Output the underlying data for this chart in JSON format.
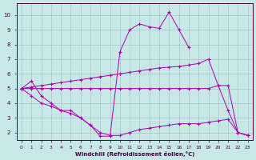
{
  "xlabel": "Windchill (Refroidissement éolien,°C)",
  "background_color": "#c8e8e8",
  "line_color": "#aa00aa",
  "grid_color": "#9fbfbf",
  "xlim": [
    -0.5,
    23.5
  ],
  "ylim": [
    1.5,
    10.8
  ],
  "xticks": [
    0,
    1,
    2,
    3,
    4,
    5,
    6,
    7,
    8,
    9,
    10,
    11,
    12,
    13,
    14,
    15,
    16,
    17,
    18,
    19,
    20,
    21,
    22,
    23
  ],
  "yticks": [
    2,
    3,
    4,
    5,
    6,
    7,
    8,
    9,
    10
  ],
  "line1_x": [
    0,
    1,
    2,
    3,
    4,
    5,
    6,
    7,
    8,
    9,
    10,
    11,
    12,
    13,
    14,
    15,
    16,
    17
  ],
  "line1_y": [
    5.0,
    5.5,
    4.5,
    4.0,
    3.5,
    3.5,
    3.0,
    2.5,
    1.75,
    1.75,
    7.5,
    9.0,
    9.4,
    9.2,
    9.1,
    10.2,
    9.0,
    7.8
  ],
  "line2_x": [
    0,
    1,
    2,
    3,
    4,
    5,
    6,
    7,
    8,
    9,
    10,
    11,
    12,
    13,
    14,
    15,
    16,
    17,
    18,
    19,
    20,
    21,
    22,
    23
  ],
  "line2_y": [
    5.0,
    5.1,
    5.2,
    5.3,
    5.4,
    5.5,
    5.6,
    5.7,
    5.8,
    5.9,
    6.0,
    6.1,
    6.2,
    6.3,
    6.4,
    6.45,
    6.5,
    6.6,
    6.7,
    7.0,
    5.2,
    3.5,
    2.0,
    1.8
  ],
  "line3_x": [
    0,
    1,
    2,
    3,
    4,
    5,
    6,
    7,
    8,
    9,
    10,
    11,
    12,
    13,
    14,
    15,
    16,
    17,
    18,
    19,
    20,
    21,
    22,
    23
  ],
  "line3_y": [
    5.0,
    5.0,
    5.0,
    5.0,
    5.0,
    5.0,
    5.0,
    5.0,
    5.0,
    5.0,
    5.0,
    5.0,
    5.0,
    5.0,
    5.0,
    5.0,
    5.0,
    5.0,
    5.0,
    5.0,
    5.2,
    5.2,
    2.0,
    1.8
  ],
  "line4_x": [
    0,
    1,
    2,
    3,
    4,
    5,
    6,
    7,
    8,
    9,
    10,
    11,
    12,
    13,
    14,
    15,
    16,
    17,
    18,
    19,
    20,
    21,
    22,
    23
  ],
  "line4_y": [
    5.0,
    4.5,
    4.0,
    3.8,
    3.5,
    3.3,
    3.0,
    2.5,
    2.0,
    1.8,
    1.8,
    2.0,
    2.2,
    2.3,
    2.4,
    2.5,
    2.6,
    2.6,
    2.6,
    2.7,
    2.8,
    2.9,
    2.0,
    1.8
  ]
}
